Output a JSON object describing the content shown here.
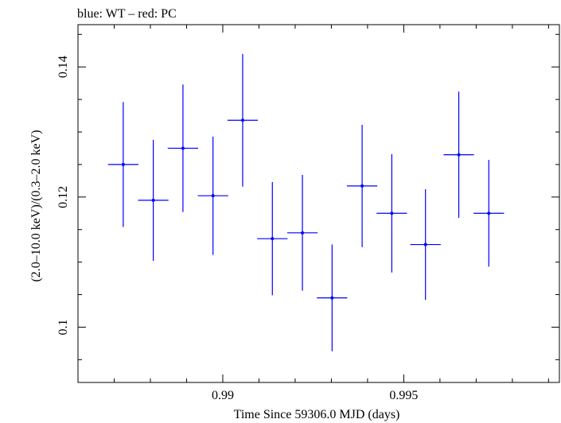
{
  "chart_data": {
    "type": "scatter",
    "title": "blue: WT – red: PC",
    "xlabel": "Time Since 59306.0 MJD (days)",
    "ylabel": "(2.0–10.0 keV)/(0.3–2.0 keV)",
    "xlim": [
      0.986,
      0.9993
    ],
    "ylim": [
      0.0915,
      0.1465
    ],
    "x_ticks": [
      {
        "value": 0.99,
        "label": "0.99"
      },
      {
        "value": 0.995,
        "label": "0.995"
      }
    ],
    "y_ticks": [
      {
        "value": 0.1,
        "label": "0.1"
      },
      {
        "value": 0.12,
        "label": "0.12"
      },
      {
        "value": 0.14,
        "label": "0.14"
      }
    ],
    "series": [
      {
        "color": "#0000ff",
        "points": [
          {
            "x": 0.98725,
            "xerr": 0.00042,
            "y": 0.125,
            "yerr": 0.0096
          },
          {
            "x": 0.98808,
            "xerr": 0.00042,
            "y": 0.1195,
            "yerr": 0.0093
          },
          {
            "x": 0.9889,
            "xerr": 0.00042,
            "y": 0.1275,
            "yerr": 0.0098
          },
          {
            "x": 0.98973,
            "xerr": 0.00042,
            "y": 0.1202,
            "yerr": 0.0091
          },
          {
            "x": 0.99055,
            "xerr": 0.00042,
            "y": 0.1318,
            "yerr": 0.0102
          },
          {
            "x": 0.99137,
            "xerr": 0.00042,
            "y": 0.1136,
            "yerr": 0.0087
          },
          {
            "x": 0.9922,
            "xerr": 0.00042,
            "y": 0.1145,
            "yerr": 0.0089
          },
          {
            "x": 0.99302,
            "xerr": 0.00042,
            "y": 0.1045,
            "yerr": 0.0082
          },
          {
            "x": 0.99385,
            "xerr": 0.00042,
            "y": 0.1217,
            "yerr": 0.0094
          },
          {
            "x": 0.99467,
            "xerr": 0.00042,
            "y": 0.1175,
            "yerr": 0.0091
          },
          {
            "x": 0.9956,
            "xerr": 0.00042,
            "y": 0.1127,
            "yerr": 0.0085
          },
          {
            "x": 0.99652,
            "xerr": 0.00042,
            "y": 0.1265,
            "yerr": 0.0097
          },
          {
            "x": 0.99735,
            "xerr": 0.00042,
            "y": 0.1175,
            "yerr": 0.0082
          }
        ]
      }
    ]
  }
}
